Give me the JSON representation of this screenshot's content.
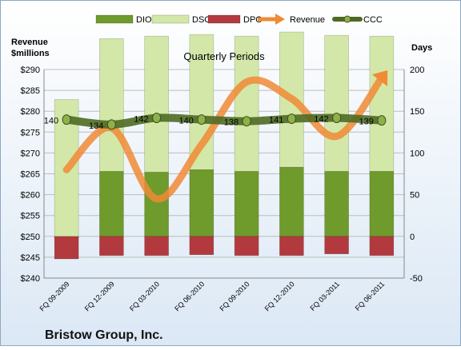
{
  "chart_data": {
    "type": "bar",
    "title": "Quarterly Periods",
    "footer": "Bristow Group, Inc.",
    "left_axis": {
      "label_line1": "Revenue",
      "label_line2": "$millions",
      "min": 240,
      "max": 290,
      "step": 5,
      "prefix": "$"
    },
    "right_axis": {
      "label": "Days",
      "min": -50,
      "max": 200,
      "step": 50
    },
    "categories": [
      "FQ 09-2009",
      "FQ 12-2009",
      "FQ 03-2010",
      "FQ 06-2010",
      "FQ 09-2010",
      "FQ 12-2010",
      "FQ 03-2011",
      "FQ 06-2011"
    ],
    "series": [
      {
        "name": "DIO",
        "axis": "right",
        "kind": "bar",
        "values": [
          -2,
          78,
          77,
          80,
          78,
          83,
          78,
          78
        ]
      },
      {
        "name": "DSO",
        "axis": "right",
        "kind": "bar",
        "values": [
          166,
          159,
          163,
          162,
          162,
          162,
          163,
          162
        ]
      },
      {
        "name": "DPO",
        "axis": "right",
        "kind": "bar",
        "values": [
          -27,
          -23,
          -23,
          -22,
          -23,
          -23,
          -21,
          -23
        ]
      },
      {
        "name": "Revenue",
        "axis": "left",
        "kind": "line",
        "values": [
          266,
          276,
          259,
          272,
          287,
          283,
          274,
          288
        ]
      },
      {
        "name": "CCC",
        "axis": "right",
        "kind": "line",
        "values": [
          140,
          134,
          142,
          140,
          138,
          141,
          142,
          139
        ]
      }
    ],
    "legend_position": "top",
    "gridlines": true
  },
  "colors": {
    "background_top": "#ffffff",
    "background_bottom": "#dbe8f5",
    "dio": "#6f9a2c",
    "dso": "#d3e8a8",
    "dpo": "#b23a3e",
    "revenue": "#f08a35",
    "ccc": "#4f6a24",
    "grid": "#bdbdbd"
  }
}
